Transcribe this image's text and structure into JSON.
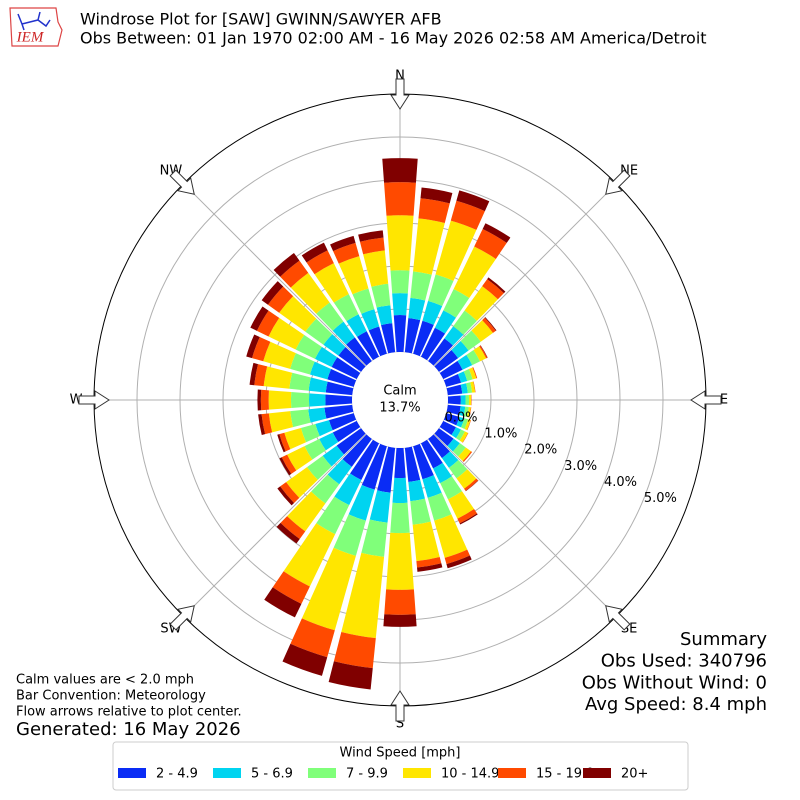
{
  "logo_text": "IEM",
  "chart_data": {
    "type": "windrose",
    "title": "Windrose Plot for [SAW] GWINN/SAWYER AFB",
    "subtitle": "Obs Between: 01 Jan 1970 02:00 AM - 16 May 2026 02:58 AM America/Detroit",
    "directions": [
      "N",
      "NE",
      "E",
      "SE",
      "S",
      "SW",
      "W",
      "NW"
    ],
    "calm_label": "Calm",
    "calm_value": "13.7%",
    "ylim": [
      0,
      6
    ],
    "yticks": [
      {
        "value": 0,
        "label": "0.0%"
      },
      {
        "value": 1,
        "label": "1.0%"
      },
      {
        "value": 2,
        "label": "2.0%"
      },
      {
        "value": 3,
        "label": "3.0%"
      },
      {
        "value": 4,
        "label": "4.0%"
      },
      {
        "value": 5,
        "label": "5.0%"
      }
    ],
    "grid": true,
    "legend_title": "Wind Speed [mph]",
    "legend_position": "bottom",
    "categories": [
      0,
      10,
      20,
      30,
      40,
      50,
      60,
      70,
      80,
      90,
      100,
      110,
      120,
      130,
      140,
      150,
      160,
      170,
      180,
      190,
      200,
      210,
      220,
      230,
      240,
      250,
      260,
      270,
      280,
      290,
      300,
      310,
      320,
      330,
      340,
      350
    ],
    "series": [
      {
        "name": "2 - 4.9",
        "color": "#0a2cf5",
        "values": [
          0.86,
          0.8,
          0.8,
          0.75,
          0.65,
          0.55,
          0.5,
          0.36,
          0.34,
          0.3,
          0.3,
          0.32,
          0.33,
          0.42,
          0.55,
          0.65,
          0.8,
          0.8,
          0.7,
          1.05,
          1.05,
          0.95,
          0.8,
          0.7,
          0.62,
          0.6,
          0.65,
          0.62,
          0.62,
          0.64,
          0.65,
          0.65,
          0.68,
          0.66,
          0.66,
          0.68
        ]
      },
      {
        "name": "5 - 6.9",
        "color": "#00d4f0",
        "values": [
          0.51,
          0.47,
          0.48,
          0.45,
          0.35,
          0.3,
          0.25,
          0.15,
          0.13,
          0.11,
          0.11,
          0.12,
          0.13,
          0.18,
          0.28,
          0.38,
          0.45,
          0.45,
          0.58,
          0.7,
          0.75,
          0.65,
          0.5,
          0.4,
          0.35,
          0.33,
          0.38,
          0.38,
          0.4,
          0.42,
          0.43,
          0.43,
          0.45,
          0.44,
          0.42,
          0.42
        ]
      },
      {
        "name": "7 - 9.9",
        "color": "#80ff7a",
        "values": [
          0.53,
          0.62,
          0.64,
          0.55,
          0.45,
          0.35,
          0.2,
          0.13,
          0.1,
          0.08,
          0.08,
          0.09,
          0.1,
          0.17,
          0.3,
          0.42,
          0.55,
          0.55,
          0.7,
          0.8,
          0.85,
          0.75,
          0.55,
          0.45,
          0.38,
          0.35,
          0.42,
          0.42,
          0.45,
          0.48,
          0.5,
          0.52,
          0.55,
          0.52,
          0.5,
          0.5
        ]
      },
      {
        "name": "10 - 14.9",
        "color": "#ffe600",
        "values": [
          1.28,
          1.24,
          1.3,
          1.1,
          0.7,
          0.35,
          0.16,
          0.09,
          0.07,
          0.05,
          0.05,
          0.06,
          0.08,
          0.15,
          0.3,
          0.5,
          0.9,
          0.85,
          1.32,
          1.9,
          1.8,
          1.35,
          0.8,
          0.6,
          0.45,
          0.4,
          0.5,
          0.52,
          0.6,
          0.65,
          0.7,
          0.75,
          0.85,
          0.8,
          0.78,
          0.78
        ]
      },
      {
        "name": "15 - 19.9",
        "color": "#ff4a00",
        "values": [
          0.77,
          0.47,
          0.48,
          0.45,
          0.2,
          0.08,
          0.03,
          0.02,
          0.01,
          0.01,
          0.01,
          0.01,
          0.01,
          0.03,
          0.06,
          0.12,
          0.15,
          0.15,
          0.58,
          0.7,
          0.65,
          0.45,
          0.22,
          0.17,
          0.14,
          0.12,
          0.17,
          0.18,
          0.22,
          0.27,
          0.3,
          0.32,
          0.35,
          0.33,
          0.32,
          0.3
        ]
      },
      {
        "name": "20+",
        "color": "#800000",
        "values": [
          0.56,
          0.25,
          0.25,
          0.15,
          0.05,
          0.02,
          0.01,
          0,
          0,
          0,
          0,
          0,
          0,
          0,
          0.01,
          0.03,
          0.1,
          0.1,
          0.28,
          0.5,
          0.45,
          0.35,
          0.13,
          0.08,
          0.06,
          0.05,
          0.08,
          0.08,
          0.11,
          0.14,
          0.17,
          0.18,
          0.22,
          0.2,
          0.17,
          0.17
        ]
      }
    ],
    "summary": [
      "Summary",
      "Obs Used: 340796",
      "Obs Without Wind: 0",
      "Avg Speed: 8.4 mph"
    ],
    "notes": [
      "Calm values are < 2.0 mph",
      "Bar Convention: Meteorology",
      "Flow arrows relative to plot center."
    ],
    "generated": "Generated: 16 May 2026"
  }
}
